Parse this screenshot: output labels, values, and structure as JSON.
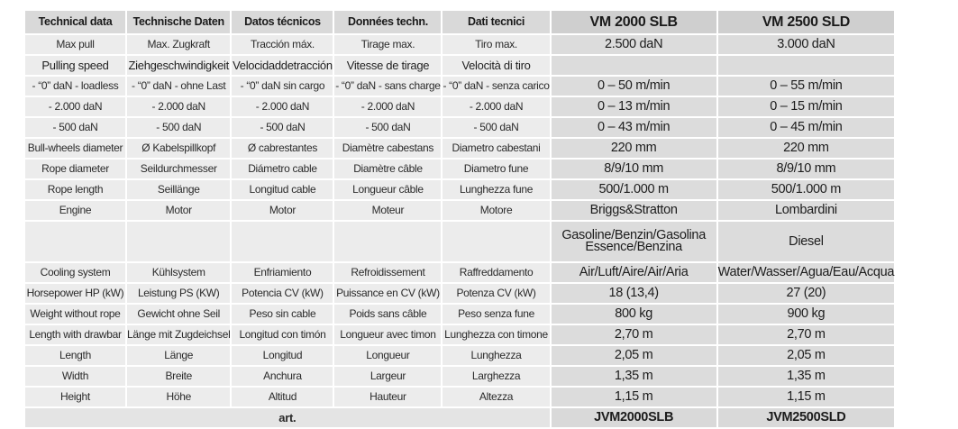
{
  "table": {
    "headers": [
      "Technical data",
      "Technische Daten",
      "Datos técnicos",
      "Données techn.",
      "Dati tecnici",
      "VM 2000 SLB",
      "VM 2500 SLD"
    ],
    "rows": [
      {
        "labels": [
          "Max pull",
          "Max. Zugkraft",
          "Tracción máx.",
          "Tirage max.",
          "Tiro max."
        ],
        "values": [
          "2.500 daN",
          "3.000 daN"
        ]
      },
      {
        "labels": [
          "Pulling speed",
          "Ziehgeschwindigkeit",
          "Velocidaddetracción",
          "Vitesse de tirage",
          "Velocità di tiro"
        ],
        "values": [
          "",
          ""
        ]
      },
      {
        "labels": [
          "- “0” daN - loadless",
          "- “0” daN - ohne Last",
          "- “0” daN sin cargo",
          "- “0” daN - sans charge",
          "- “0” daN - senza carico"
        ],
        "values": [
          "0 – 50 m/min",
          "0 – 55 m/min"
        ]
      },
      {
        "labels": [
          "- 2.000 daN",
          "- 2.000 daN",
          "- 2.000 daN",
          "- 2.000 daN",
          "- 2.000 daN"
        ],
        "values": [
          "0 – 13 m/min",
          "0 – 15 m/min"
        ]
      },
      {
        "labels": [
          "- 500 daN",
          "- 500 daN",
          "- 500 daN",
          "- 500 daN",
          "- 500 daN"
        ],
        "values": [
          "0 – 43 m/min",
          "0 – 45 m/min"
        ]
      },
      {
        "labels": [
          "Bull-wheels diameter",
          "Ø Kabelspillkopf",
          "Ø cabrestantes",
          "Diamètre cabestans",
          "Diametro cabestani"
        ],
        "values": [
          "220 mm",
          "220 mm"
        ]
      },
      {
        "labels": [
          "Rope diameter",
          "Seildurchmesser",
          "Diámetro cable",
          "Diamètre câble",
          "Diametro fune"
        ],
        "values": [
          "8/9/10 mm",
          "8/9/10 mm"
        ]
      },
      {
        "labels": [
          "Rope length",
          "Seillänge",
          "Longitud cable",
          "Longueur câble",
          "Lunghezza fune"
        ],
        "values": [
          "500/1.000 m",
          "500/1.000 m"
        ]
      },
      {
        "labels": [
          "Engine",
          "Motor",
          "Motor",
          "Moteur",
          "Motore"
        ],
        "values": [
          "Briggs&Stratton",
          "Lombardini"
        ]
      },
      {
        "labels": [
          "",
          "",
          "",
          "",
          ""
        ],
        "values": [
          "Gasoline/Benzin/Gasolina\nEssence/Benzina",
          "Diesel"
        ]
      },
      {
        "labels": [
          "Cooling system",
          "Kühlsystem",
          "Enfriamiento",
          "Refroidissement",
          "Raffreddamento"
        ],
        "values": [
          "Air/Luft/Aire/Air/Aria",
          "Water/Wasser/Agua/Eau/Acqua"
        ]
      },
      {
        "labels": [
          "Horsepower HP (kW)",
          "Leistung PS (KW)",
          "Potencia CV (kW)",
          "Puissance en CV (kW)",
          "Potenza CV (kW)"
        ],
        "values": [
          "18 (13,4)",
          "27 (20)"
        ]
      },
      {
        "labels": [
          "Weight without rope",
          "Gewicht ohne Seil",
          "Peso sin cable",
          "Poids sans câble",
          "Peso senza fune"
        ],
        "values": [
          "800 kg",
          "900 kg"
        ]
      },
      {
        "labels": [
          "Length with drawbar",
          "Länge mit Zugdeichsel",
          "Longitud con timón",
          "Longueur avec timon",
          "Lunghezza con timone"
        ],
        "values": [
          "2,70 m",
          "2,70 m"
        ]
      },
      {
        "labels": [
          "Length",
          "Länge",
          "Longitud",
          "Longueur",
          "Lunghezza"
        ],
        "values": [
          "2,05 m",
          "2,05 m"
        ]
      },
      {
        "labels": [
          "Width",
          "Breite",
          "Anchura",
          "Largeur",
          "Larghezza"
        ],
        "values": [
          "1,35 m",
          "1,35 m"
        ]
      },
      {
        "labels": [
          "Height",
          "Höhe",
          "Altitud",
          "Hauteur",
          "Altezza"
        ],
        "values": [
          "1,15 m",
          "1,15 m"
        ]
      }
    ],
    "art": {
      "label": "art.",
      "values": [
        "JVM2000SLB",
        "JVM2500SLD"
      ]
    }
  }
}
